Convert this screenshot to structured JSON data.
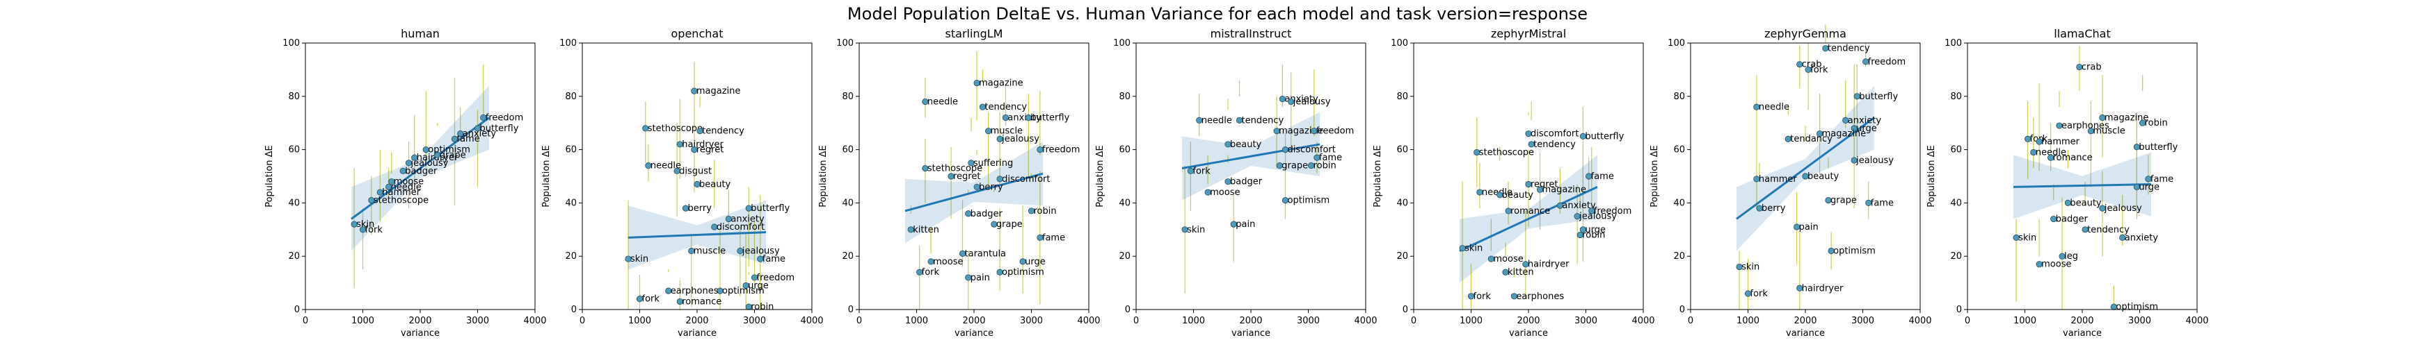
{
  "figure": {
    "title": "Model Population DeltaE vs. Human Variance for each model and task version=response"
  },
  "chart_data": [
    {
      "type": "scatter",
      "title": "human",
      "xlabel": "variance",
      "ylabel": "Population ΔE",
      "xlim": [
        0,
        4000
      ],
      "ylim": [
        0,
        100
      ],
      "xticks": [
        0,
        1000,
        2000,
        3000,
        4000
      ],
      "yticks": [
        0,
        20,
        40,
        60,
        80,
        100
      ],
      "regression": {
        "x": [
          800,
          3200
        ],
        "y": [
          34,
          72
        ]
      },
      "points": [
        {
          "label": "skin",
          "x": 850,
          "y": 32
        },
        {
          "label": "fork",
          "x": 1000,
          "y": 30
        },
        {
          "label": "stethoscope",
          "x": 1150,
          "y": 41
        },
        {
          "label": "hammer",
          "x": 1300,
          "y": 44
        },
        {
          "label": "needle",
          "x": 1450,
          "y": 46
        },
        {
          "label": "moose",
          "x": 1500,
          "y": 48
        },
        {
          "label": "badger",
          "x": 1700,
          "y": 52
        },
        {
          "label": "jealousy",
          "x": 1800,
          "y": 55
        },
        {
          "label": "hairdryer",
          "x": 1900,
          "y": 57
        },
        {
          "label": "grape",
          "x": 2300,
          "y": 58
        },
        {
          "label": "optimism",
          "x": 2100,
          "y": 60
        },
        {
          "label": "fame",
          "x": 2600,
          "y": 64
        },
        {
          "label": "anxiety",
          "x": 2700,
          "y": 66
        },
        {
          "label": "butterfly",
          "x": 3000,
          "y": 68
        },
        {
          "label": "freedom",
          "x": 3100,
          "y": 72
        }
      ]
    },
    {
      "type": "scatter",
      "title": "openchat",
      "xlabel": "variance",
      "ylabel": "Population ΔE",
      "xlim": [
        0,
        4000
      ],
      "ylim": [
        0,
        100
      ],
      "xticks": [
        0,
        1000,
        2000,
        3000,
        4000
      ],
      "yticks": [
        0,
        20,
        40,
        60,
        80,
        100
      ],
      "regression": {
        "x": [
          800,
          3200
        ],
        "y": [
          27,
          29
        ]
      },
      "points": [
        {
          "label": "magazine",
          "x": 1950,
          "y": 82
        },
        {
          "label": "stethoscope",
          "x": 1100,
          "y": 68
        },
        {
          "label": "tendency",
          "x": 2050,
          "y": 67
        },
        {
          "label": "hairdryer",
          "x": 1700,
          "y": 62
        },
        {
          "label": "regret",
          "x": 1950,
          "y": 60
        },
        {
          "label": "needle",
          "x": 1150,
          "y": 54
        },
        {
          "label": "disgust",
          "x": 1650,
          "y": 52
        },
        {
          "label": "beauty",
          "x": 2000,
          "y": 47
        },
        {
          "label": "berry",
          "x": 1800,
          "y": 38
        },
        {
          "label": "butterfly",
          "x": 2900,
          "y": 38
        },
        {
          "label": "anxiety",
          "x": 2550,
          "y": 34
        },
        {
          "label": "discomfort",
          "x": 2300,
          "y": 31
        },
        {
          "label": "skin",
          "x": 800,
          "y": 19
        },
        {
          "label": "muscle",
          "x": 1900,
          "y": 22
        },
        {
          "label": "jealousy",
          "x": 2750,
          "y": 22
        },
        {
          "label": "fame",
          "x": 3100,
          "y": 19
        },
        {
          "label": "freedom",
          "x": 3000,
          "y": 12
        },
        {
          "label": "urge",
          "x": 2850,
          "y": 9
        },
        {
          "label": "optimism",
          "x": 2400,
          "y": 7
        },
        {
          "label": "earphones",
          "x": 1500,
          "y": 7
        },
        {
          "label": "fork",
          "x": 1000,
          "y": 4
        },
        {
          "label": "romance",
          "x": 1700,
          "y": 3
        },
        {
          "label": "robin",
          "x": 2900,
          "y": 1
        }
      ]
    },
    {
      "type": "scatter",
      "title": "starlingLM",
      "xlabel": "variance",
      "ylabel": "Population ΔE",
      "xlim": [
        0,
        4000
      ],
      "ylim": [
        0,
        100
      ],
      "xticks": [
        0,
        1000,
        2000,
        3000,
        4000
      ],
      "yticks": [
        0,
        20,
        40,
        60,
        80,
        100
      ],
      "regression": {
        "x": [
          800,
          3200
        ],
        "y": [
          37,
          51
        ]
      },
      "points": [
        {
          "label": "magazine",
          "x": 2050,
          "y": 85
        },
        {
          "label": "needle",
          "x": 1150,
          "y": 78
        },
        {
          "label": "tendency",
          "x": 2150,
          "y": 76
        },
        {
          "label": "anxiety",
          "x": 2550,
          "y": 72
        },
        {
          "label": "butterfly",
          "x": 2950,
          "y": 72
        },
        {
          "label": "jealousy",
          "x": 2450,
          "y": 64
        },
        {
          "label": "muscle",
          "x": 2250,
          "y": 67
        },
        {
          "label": "freedom",
          "x": 3150,
          "y": 60
        },
        {
          "label": "suffering",
          "x": 1950,
          "y": 55
        },
        {
          "label": "stethoscope",
          "x": 1150,
          "y": 53
        },
        {
          "label": "discomfort",
          "x": 2450,
          "y": 49
        },
        {
          "label": "regret",
          "x": 1600,
          "y": 50
        },
        {
          "label": "berry",
          "x": 2050,
          "y": 46
        },
        {
          "label": "badger",
          "x": 1900,
          "y": 36
        },
        {
          "label": "robin",
          "x": 3000,
          "y": 37
        },
        {
          "label": "grape",
          "x": 2350,
          "y": 32
        },
        {
          "label": "kitten",
          "x": 900,
          "y": 30
        },
        {
          "label": "fame",
          "x": 3150,
          "y": 27
        },
        {
          "label": "tarantula",
          "x": 1800,
          "y": 21
        },
        {
          "label": "moose",
          "x": 1250,
          "y": 18
        },
        {
          "label": "urge",
          "x": 2850,
          "y": 18
        },
        {
          "label": "fork",
          "x": 1050,
          "y": 14
        },
        {
          "label": "optimism",
          "x": 2450,
          "y": 14
        },
        {
          "label": "pain",
          "x": 1900,
          "y": 12
        }
      ]
    },
    {
      "type": "scatter",
      "title": "mistralInstruct",
      "xlabel": "variance",
      "ylabel": "Population ΔE",
      "xlim": [
        0,
        4000
      ],
      "ylim": [
        0,
        100
      ],
      "xticks": [
        0,
        1000,
        2000,
        3000,
        4000
      ],
      "yticks": [
        0,
        20,
        40,
        60,
        80,
        100
      ],
      "regression": {
        "x": [
          800,
          3200
        ],
        "y": [
          53,
          62
        ]
      },
      "points": [
        {
          "label": "anxiety",
          "x": 2550,
          "y": 79
        },
        {
          "label": "jealousy",
          "x": 2700,
          "y": 78
        },
        {
          "label": "needle",
          "x": 1100,
          "y": 71
        },
        {
          "label": "tendency",
          "x": 1800,
          "y": 71
        },
        {
          "label": "magazine",
          "x": 2450,
          "y": 67
        },
        {
          "label": "beauty",
          "x": 1600,
          "y": 62
        },
        {
          "label": "freedom",
          "x": 3100,
          "y": 67
        },
        {
          "label": "discomfort",
          "x": 2600,
          "y": 60
        },
        {
          "label": "fame",
          "x": 3150,
          "y": 57
        },
        {
          "label": "robin",
          "x": 3050,
          "y": 54
        },
        {
          "label": "grape",
          "x": 2500,
          "y": 54
        },
        {
          "label": "fork",
          "x": 950,
          "y": 52
        },
        {
          "label": "badger",
          "x": 1600,
          "y": 48
        },
        {
          "label": "moose",
          "x": 1250,
          "y": 44
        },
        {
          "label": "optimism",
          "x": 2600,
          "y": 41
        },
        {
          "label": "pain",
          "x": 1700,
          "y": 32
        },
        {
          "label": "skin",
          "x": 850,
          "y": 30
        }
      ]
    },
    {
      "type": "scatter",
      "title": "zephyrMistral",
      "xlabel": "variance",
      "ylabel": "Population ΔE",
      "xlim": [
        0,
        4000
      ],
      "ylim": [
        0,
        100
      ],
      "xticks": [
        0,
        1000,
        2000,
        3000,
        4000
      ],
      "yticks": [
        0,
        20,
        40,
        60,
        80,
        100
      ],
      "regression": {
        "x": [
          800,
          3200
        ],
        "y": [
          22,
          46
        ]
      },
      "points": [
        {
          "label": "butterfly",
          "x": 2950,
          "y": 65
        },
        {
          "label": "discomfort",
          "x": 2000,
          "y": 66
        },
        {
          "label": "tendency",
          "x": 2050,
          "y": 62
        },
        {
          "label": "stethoscope",
          "x": 1100,
          "y": 59
        },
        {
          "label": "fame",
          "x": 3050,
          "y": 50
        },
        {
          "label": "regret",
          "x": 2000,
          "y": 47
        },
        {
          "label": "magazine",
          "x": 2200,
          "y": 45
        },
        {
          "label": "needle",
          "x": 1150,
          "y": 44
        },
        {
          "label": "beauty",
          "x": 1500,
          "y": 43
        },
        {
          "label": "anxiety",
          "x": 2550,
          "y": 39
        },
        {
          "label": "freedom",
          "x": 3100,
          "y": 37
        },
        {
          "label": "romance",
          "x": 1650,
          "y": 37
        },
        {
          "label": "urge",
          "x": 2950,
          "y": 30
        },
        {
          "label": "jealousy",
          "x": 2850,
          "y": 35
        },
        {
          "label": "robin",
          "x": 2900,
          "y": 28
        },
        {
          "label": "skin",
          "x": 850,
          "y": 23
        },
        {
          "label": "hairdryer",
          "x": 1950,
          "y": 17
        },
        {
          "label": "moose",
          "x": 1350,
          "y": 19
        },
        {
          "label": "kitten",
          "x": 1600,
          "y": 14
        },
        {
          "label": "fork",
          "x": 1000,
          "y": 5
        },
        {
          "label": "earphones",
          "x": 1750,
          "y": 5
        }
      ]
    },
    {
      "type": "scatter",
      "title": "zephyrGemma",
      "xlabel": "variance",
      "ylabel": "Population ΔE",
      "xlim": [
        0,
        4000
      ],
      "ylim": [
        0,
        100
      ],
      "xticks": [
        0,
        1000,
        2000,
        3000,
        4000
      ],
      "yticks": [
        0,
        20,
        40,
        60,
        80,
        100
      ],
      "regression": {
        "x": [
          800,
          3200
        ],
        "y": [
          34,
          72
        ]
      },
      "points": [
        {
          "label": "tendency",
          "x": 2350,
          "y": 98
        },
        {
          "label": "freedom",
          "x": 3050,
          "y": 93
        },
        {
          "label": "crab",
          "x": 1900,
          "y": 92
        },
        {
          "label": "fork",
          "x": 2050,
          "y": 90
        },
        {
          "label": "butterfly",
          "x": 2900,
          "y": 80
        },
        {
          "label": "needle",
          "x": 1150,
          "y": 76
        },
        {
          "label": "anxiety",
          "x": 2700,
          "y": 71
        },
        {
          "label": "urge",
          "x": 2850,
          "y": 68
        },
        {
          "label": "magazine",
          "x": 2250,
          "y": 66
        },
        {
          "label": "tendancy",
          "x": 1700,
          "y": 64
        },
        {
          "label": "jealousy",
          "x": 2850,
          "y": 56
        },
        {
          "label": "beauty",
          "x": 2000,
          "y": 50
        },
        {
          "label": "hammer",
          "x": 1150,
          "y": 49
        },
        {
          "label": "grape",
          "x": 2400,
          "y": 41
        },
        {
          "label": "fame",
          "x": 3100,
          "y": 40
        },
        {
          "label": "berry",
          "x": 1200,
          "y": 38
        },
        {
          "label": "pain",
          "x": 1850,
          "y": 31
        },
        {
          "label": "optimism",
          "x": 2450,
          "y": 22
        },
        {
          "label": "skin",
          "x": 850,
          "y": 16
        },
        {
          "label": "hairdryer",
          "x": 1900,
          "y": 8
        },
        {
          "label": "fork",
          "x": 1000,
          "y": 6
        }
      ]
    },
    {
      "type": "scatter",
      "title": "llamaChat",
      "xlabel": "variance",
      "ylabel": "Population ΔE",
      "xlim": [
        0,
        4000
      ],
      "ylim": [
        0,
        100
      ],
      "xticks": [
        0,
        1000,
        2000,
        3000,
        4000
      ],
      "yticks": [
        0,
        20,
        40,
        60,
        80,
        100
      ],
      "regression": {
        "x": [
          800,
          3200
        ],
        "y": [
          46,
          47
        ]
      },
      "points": [
        {
          "label": "crab",
          "x": 1950,
          "y": 91
        },
        {
          "label": "magazine",
          "x": 2350,
          "y": 72
        },
        {
          "label": "robin",
          "x": 3050,
          "y": 70
        },
        {
          "label": "earphones",
          "x": 1600,
          "y": 69
        },
        {
          "label": "muscle",
          "x": 2150,
          "y": 67
        },
        {
          "label": "fork",
          "x": 1050,
          "y": 64
        },
        {
          "label": "hammer",
          "x": 1250,
          "y": 63
        },
        {
          "label": "butterfly",
          "x": 2950,
          "y": 61
        },
        {
          "label": "needle",
          "x": 1150,
          "y": 59
        },
        {
          "label": "romance",
          "x": 1450,
          "y": 57
        },
        {
          "label": "fame",
          "x": 3150,
          "y": 49
        },
        {
          "label": "urge",
          "x": 2950,
          "y": 46
        },
        {
          "label": "beauty",
          "x": 1750,
          "y": 40
        },
        {
          "label": "jealousy",
          "x": 2350,
          "y": 38
        },
        {
          "label": "badger",
          "x": 1500,
          "y": 34
        },
        {
          "label": "tendency",
          "x": 2050,
          "y": 30
        },
        {
          "label": "skin",
          "x": 850,
          "y": 27
        },
        {
          "label": "anxiety",
          "x": 2700,
          "y": 27
        },
        {
          "label": "leg",
          "x": 1650,
          "y": 20
        },
        {
          "label": "moose",
          "x": 1250,
          "y": 17
        },
        {
          "label": "optimism",
          "x": 2550,
          "y": 1
        }
      ]
    }
  ]
}
